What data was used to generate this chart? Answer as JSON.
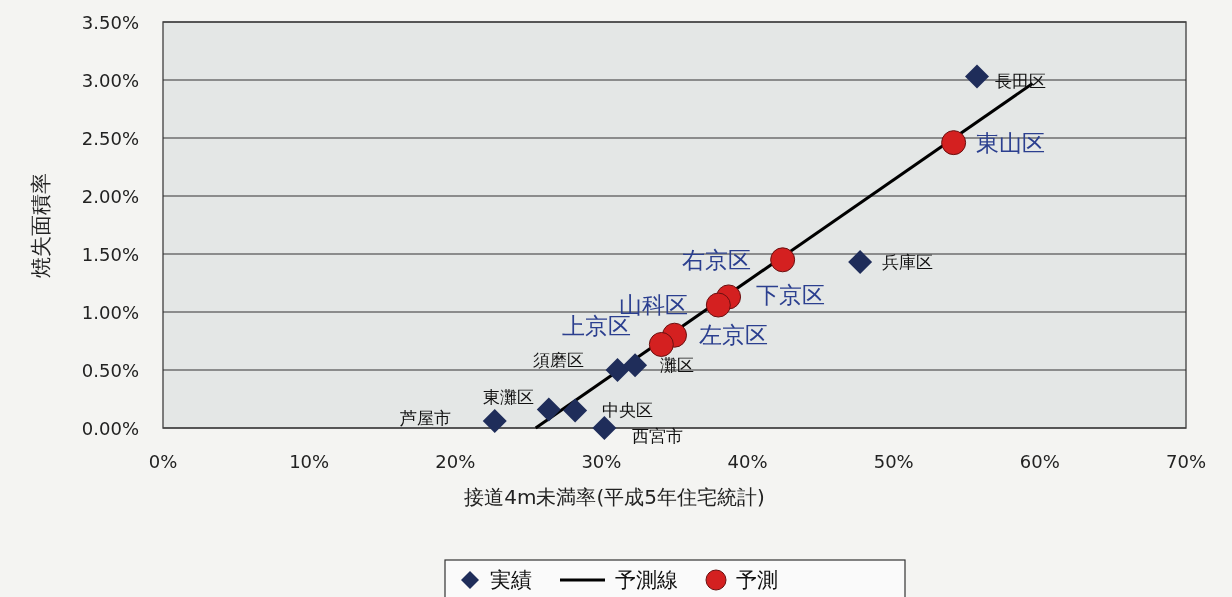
{
  "chart_data": {
    "type": "scatter",
    "xlabel": "接道4m未満率(平成5年住宅統計)",
    "ylabel": "焼失面積率",
    "xlim": [
      0,
      70
    ],
    "ylim": [
      0,
      3.5
    ],
    "grid": "y",
    "legend": "bottom",
    "xticks": [
      {
        "value": 0,
        "label": "0%"
      },
      {
        "value": 10,
        "label": "10%"
      },
      {
        "value": 20,
        "label": "20%"
      },
      {
        "value": 30,
        "label": "30%"
      },
      {
        "value": 40,
        "label": "40%"
      },
      {
        "value": 50,
        "label": "50%"
      },
      {
        "value": 60,
        "label": "60%"
      },
      {
        "value": 70,
        "label": "70%"
      }
    ],
    "yticks": [
      {
        "value": 0,
        "label": "0.00%"
      },
      {
        "value": 0.5,
        "label": "0.50%"
      },
      {
        "value": 1,
        "label": "1.00%"
      },
      {
        "value": 1.5,
        "label": "1.50%"
      },
      {
        "value": 2,
        "label": "2.00%"
      },
      {
        "value": 2.5,
        "label": "2.50%"
      },
      {
        "value": 3,
        "label": "3.00%"
      },
      {
        "value": 3.5,
        "label": "3.50%"
      }
    ],
    "series": [
      {
        "name": "実績",
        "marker": "diamond",
        "color": "#1f2d5a",
        "x": [
          55.7,
          47.7,
          31.1,
          32.3,
          26.4,
          28.2,
          22.7,
          30.2
        ],
        "values": [
          3.03,
          1.43,
          0.5,
          0.54,
          0.16,
          0.15,
          0.06,
          0.0
        ]
      },
      {
        "name": "予測線",
        "type": "line",
        "marker": "none",
        "color": "#000000",
        "x": [
          25.5,
          59.5
        ],
        "values": [
          0,
          2.97
        ]
      },
      {
        "name": "予測",
        "marker": "circle",
        "color": "#d42020",
        "x": [
          54.1,
          42.4,
          38.7,
          38.0,
          35.0,
          34.1
        ],
        "values": [
          2.46,
          1.45,
          1.13,
          1.06,
          0.8,
          0.72
        ]
      }
    ],
    "annotations": [
      {
        "text": "長田区",
        "x": 55.7,
        "y": 3.03
      },
      {
        "text": "東山区",
        "x": 54.1,
        "y": 2.46
      },
      {
        "text": "兵庫区",
        "x": 47.7,
        "y": 1.43
      },
      {
        "text": "右京区",
        "x": 42.4,
        "y": 1.45
      },
      {
        "text": "下京区",
        "x": 38.7,
        "y": 1.13
      },
      {
        "text": "山科区",
        "x": 38.0,
        "y": 1.06
      },
      {
        "text": "左京区",
        "x": 35.0,
        "y": 0.8
      },
      {
        "text": "上京区",
        "x": 34.1,
        "y": 0.72
      },
      {
        "text": "須磨区",
        "x": 31.1,
        "y": 0.5
      },
      {
        "text": "灘区",
        "x": 32.3,
        "y": 0.54
      },
      {
        "text": "東灘区",
        "x": 26.4,
        "y": 0.16
      },
      {
        "text": "中央区",
        "x": 28.2,
        "y": 0.15
      },
      {
        "text": "芦屋市",
        "x": 22.7,
        "y": 0.06
      },
      {
        "text": "西宮市",
        "x": 30.2,
        "y": 0.0
      }
    ]
  }
}
